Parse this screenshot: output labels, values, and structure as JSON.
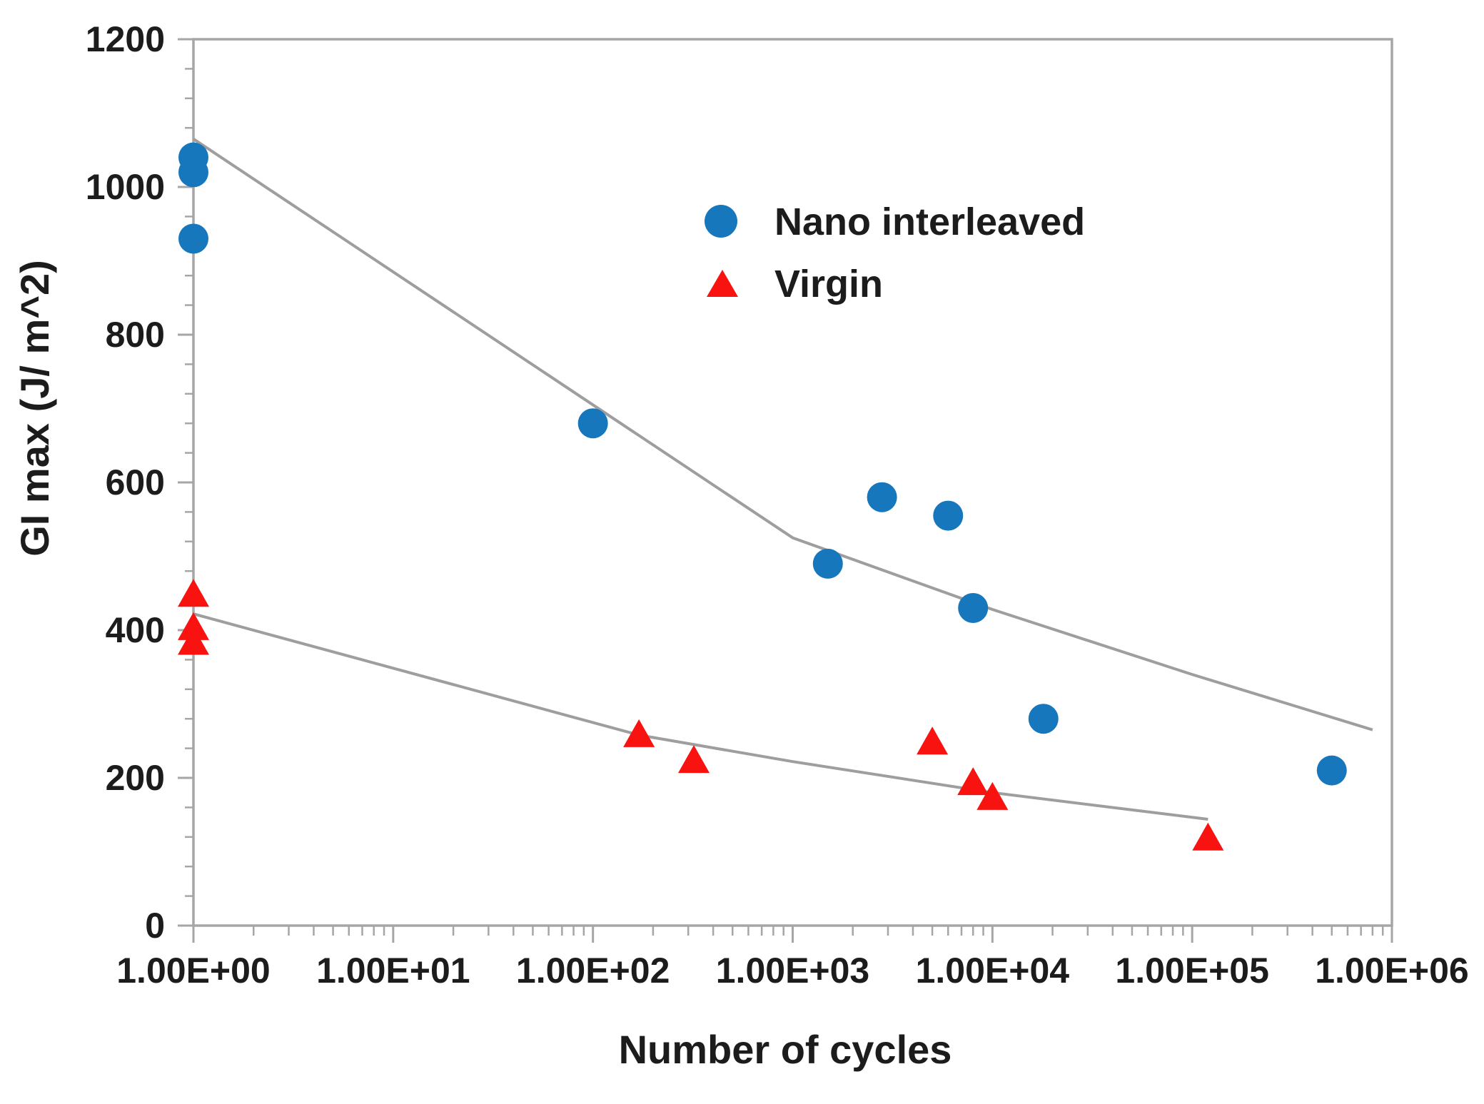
{
  "chart_data": {
    "type": "scatter",
    "title": "",
    "xlabel": "Number of cycles",
    "ylabel": "GI max (J/  m^2)",
    "x_scale": "log",
    "x_range": [
      1,
      1000000
    ],
    "x_tick_labels": [
      "1.00E+00",
      "1.00E+01",
      "1.00E+02",
      "1.00E+03",
      "1.00E+04",
      "1.00E+05",
      "1.00E+06"
    ],
    "y_range": [
      0,
      1200
    ],
    "y_tick_step": 200,
    "y_minor_step": 40,
    "grid": "off",
    "legend_position": "inside-top-right",
    "colors": {
      "nano": "#1677bd",
      "virgin": "#f81210",
      "trend": "#9e9e9e",
      "axis": "#a6a6a6",
      "text": "#1c1c1c"
    },
    "series": [
      {
        "name": "Nano interleaved",
        "marker": "circle",
        "color": "#1677bd",
        "points": [
          [
            1,
            1040
          ],
          [
            1,
            1020
          ],
          [
            1,
            930
          ],
          [
            100,
            680
          ],
          [
            1500,
            490
          ],
          [
            2800,
            580
          ],
          [
            6000,
            555
          ],
          [
            8000,
            430
          ],
          [
            18000,
            280
          ],
          [
            500000,
            210
          ]
        ]
      },
      {
        "name": "Virgin",
        "marker": "triangle",
        "color": "#f81210",
        "points": [
          [
            1,
            450
          ],
          [
            1,
            405
          ],
          [
            1,
            385
          ],
          [
            170,
            260
          ],
          [
            320,
            225
          ],
          [
            5000,
            250
          ],
          [
            8000,
            195
          ],
          [
            10000,
            175
          ],
          [
            120000,
            120
          ]
        ]
      }
    ],
    "trend_lines": [
      {
        "series": "Nano interleaved",
        "color": "#9e9e9e",
        "points": [
          [
            1,
            1065
          ],
          [
            1000,
            525
          ],
          [
            10000,
            428
          ],
          [
            100000,
            340
          ],
          [
            800000,
            265
          ]
        ]
      },
      {
        "series": "Virgin",
        "color": "#9e9e9e",
        "points": [
          [
            1,
            422
          ],
          [
            170,
            258
          ],
          [
            1000,
            222
          ],
          [
            10000,
            180
          ],
          [
            120000,
            144
          ]
        ]
      }
    ]
  }
}
